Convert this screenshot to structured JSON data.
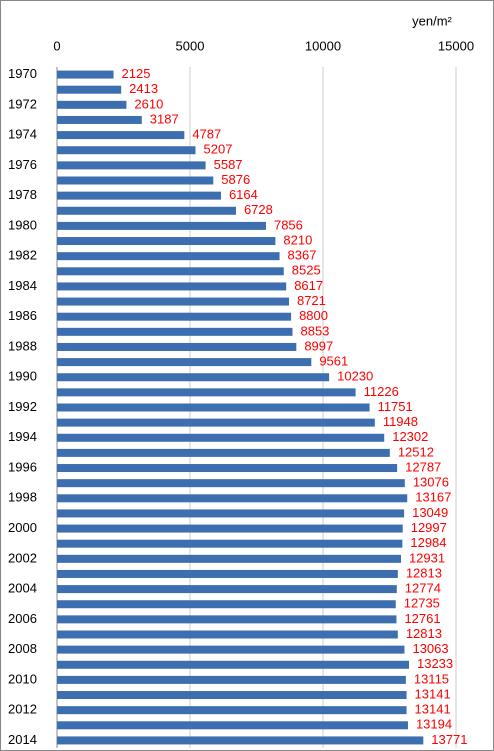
{
  "chart_data": {
    "type": "hbar",
    "unit_label": "yen/m²",
    "categories": [
      "1970",
      null,
      "1972",
      null,
      "1974",
      null,
      "1976",
      null,
      "1978",
      null,
      "1980",
      null,
      "1982",
      null,
      "1984",
      null,
      "1986",
      null,
      "1988",
      null,
      "1990",
      null,
      "1992",
      null,
      "1994",
      null,
      "1996",
      null,
      "1998",
      null,
      "2000",
      null,
      "2002",
      null,
      "2004",
      null,
      "2006",
      null,
      "2008",
      null,
      "2010",
      null,
      "2012",
      null,
      "2014"
    ],
    "values": [
      2125,
      2413,
      2610,
      3187,
      4787,
      5207,
      5587,
      5876,
      6164,
      6728,
      7856,
      8210,
      8367,
      8525,
      8617,
      8721,
      8800,
      8853,
      8997,
      9561,
      10230,
      11226,
      11751,
      11948,
      12302,
      12512,
      12787,
      13076,
      13167,
      13049,
      12997,
      12984,
      12931,
      12813,
      12774,
      12735,
      12761,
      12813,
      13063,
      13233,
      13115,
      13141,
      13141,
      13194,
      13771
    ],
    "color": "#3d6eb0",
    "label_color": "#ff0000",
    "xlim": [
      0,
      15000
    ],
    "xticks": [
      0,
      5000,
      10000,
      15000
    ],
    "grid": true
  }
}
